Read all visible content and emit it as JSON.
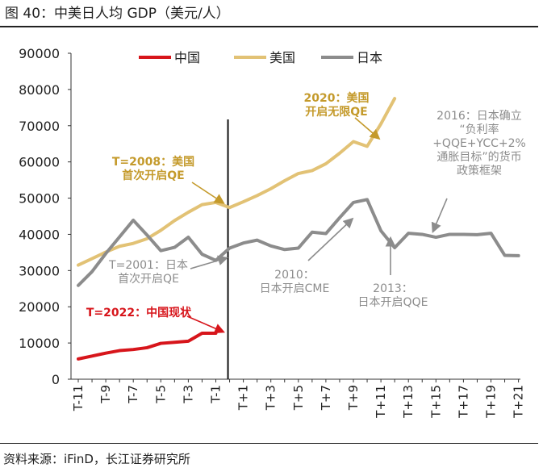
{
  "title": "图 40：中美日人均 GDP（美元/人）",
  "source": "资料来源：iFinD，长江证券研究所",
  "colors": {
    "china": "#d7151b",
    "usa": "#e2c275",
    "japan": "#8c8c8c",
    "annot_usa": "#c49a2b",
    "axis": "#333333"
  },
  "chart_data": {
    "type": "line",
    "title": "中美日人均 GDP（美元/人）",
    "xlabel": "",
    "ylabel": "",
    "ylim": [
      0,
      90000
    ],
    "yticks": [
      0,
      10000,
      20000,
      30000,
      40000,
      50000,
      60000,
      70000,
      80000,
      90000
    ],
    "x": [
      "T-11",
      "T-10",
      "T-9",
      "T-8",
      "T-7",
      "T-6",
      "T-5",
      "T-4",
      "T-3",
      "T-2",
      "T-1",
      "T",
      "T+1",
      "T+2",
      "T+3",
      "T+4",
      "T+5",
      "T+6",
      "T+7",
      "T+8",
      "T+9",
      "T+10",
      "T+11",
      "T+12",
      "T+13",
      "T+14",
      "T+15",
      "T+16",
      "T+17",
      "T+18",
      "T+19",
      "T+20",
      "T+21"
    ],
    "xtick_labels": [
      "T-11",
      "T-9",
      "T-7",
      "T-5",
      "T-3",
      "T-1",
      "T+1",
      "T+3",
      "T+5",
      "T+7",
      "T+9",
      "T+11",
      "T+13",
      "T+15",
      "T+17",
      "T+19",
      "T+21"
    ],
    "vline_at": "T",
    "legend": [
      "中国",
      "美国",
      "日本"
    ],
    "series": [
      {
        "name": "中国",
        "color_key": "china",
        "values": [
          5600,
          6400,
          7200,
          7900,
          8200,
          8700,
          9900,
          10200,
          10500,
          12700,
          12700,
          null,
          null,
          null,
          null,
          null,
          null,
          null,
          null,
          null,
          null,
          null,
          null,
          null,
          null,
          null,
          null,
          null,
          null,
          null,
          null,
          null,
          null
        ]
      },
      {
        "name": "美国",
        "color_key": "usa",
        "values": [
          31500,
          33300,
          35100,
          36700,
          37500,
          38800,
          41100,
          43800,
          46100,
          48200,
          48800,
          47400,
          49000,
          50700,
          52600,
          54800,
          56800,
          57600,
          59500,
          62400,
          65600,
          64300,
          70500,
          77500,
          null,
          null,
          null,
          null,
          null,
          null,
          null,
          null,
          null
        ]
      },
      {
        "name": "日本",
        "color_key": "japan",
        "values": [
          25900,
          29700,
          34700,
          39300,
          43900,
          39800,
          35500,
          36400,
          39200,
          34500,
          32800,
          36200,
          37600,
          38400,
          36800,
          35800,
          36200,
          40600,
          40200,
          44600,
          48800,
          49600,
          41000,
          36300,
          40300,
          40000,
          39200,
          40000,
          40000,
          39900,
          40300,
          34200,
          34100
        ]
      }
    ],
    "series_x_offset": [
      0,
      0,
      0
    ],
    "annotations": [
      {
        "lines": [
          "T=2022：中国现状"
        ],
        "color_key": "china",
        "bold": true
      },
      {
        "lines": [
          "T=2008：美国",
          "首次开启QE"
        ],
        "color_key": "annot_usa",
        "bold": true
      },
      {
        "lines": [
          "2020：美国",
          "开启无限QE"
        ],
        "color_key": "annot_usa",
        "bold": true
      },
      {
        "lines": [
          "T=2001：日本",
          "首次开启QE"
        ],
        "color_key": "japan",
        "bold": false
      },
      {
        "lines": [
          "2010：",
          "日本开启CME"
        ],
        "color_key": "japan",
        "bold": false
      },
      {
        "lines": [
          "2013：",
          "日本开启QQE"
        ],
        "color_key": "japan",
        "bold": false
      },
      {
        "lines": [
          "2016：日本确立",
          "“负利率",
          "+QQE+YCC+2%",
          "通胀目标”的货币",
          "政策框架"
        ],
        "color_key": "japan",
        "bold": false
      }
    ]
  }
}
